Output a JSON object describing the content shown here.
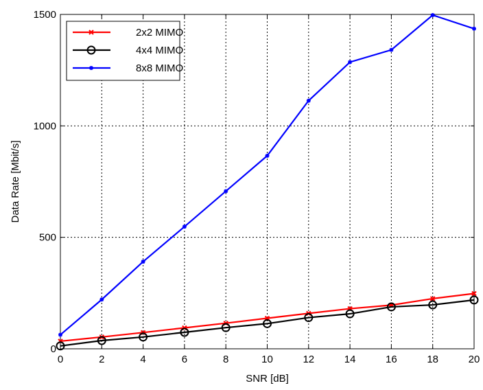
{
  "chart_data": {
    "type": "line",
    "title": "",
    "xlabel": "SNR [dB]",
    "ylabel": "Data Rate [Mbit/s]",
    "xlim": [
      0,
      20
    ],
    "ylim": [
      0,
      1500
    ],
    "xticks": [
      0,
      2,
      4,
      6,
      8,
      10,
      12,
      14,
      16,
      18,
      20
    ],
    "yticks": [
      0,
      500,
      1000,
      1500
    ],
    "grid": true,
    "legend_position": "top-left",
    "x": [
      0,
      2,
      4,
      6,
      8,
      10,
      12,
      14,
      16,
      18,
      20
    ],
    "series": [
      {
        "name": "2x2 MIMO",
        "color": "#ff0000",
        "marker": "x",
        "values": [
          34,
          53,
          73,
          94,
          115,
          137,
          159,
          180,
          196,
          225,
          248
        ]
      },
      {
        "name": "4x4 MIMO",
        "color": "#000000",
        "marker": "circle",
        "values": [
          13,
          37,
          53,
          74,
          95,
          113,
          140,
          157,
          188,
          197,
          219
        ]
      },
      {
        "name": "8x8 MIMO",
        "color": "#0000ff",
        "marker": "star",
        "values": [
          63,
          221,
          391,
          548,
          707,
          866,
          1113,
          1286,
          1341,
          1497,
          1436
        ]
      }
    ]
  }
}
